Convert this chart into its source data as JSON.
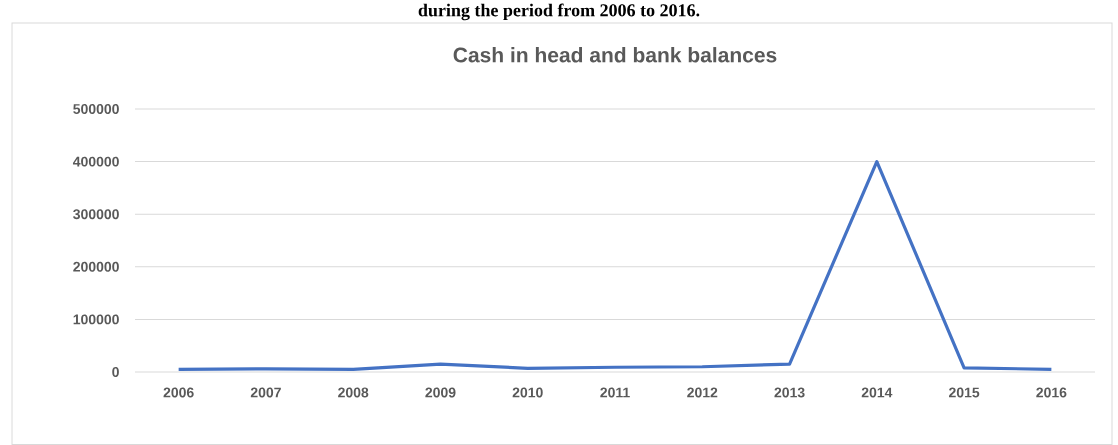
{
  "chart_data": {
    "type": "line",
    "title": "Cash in head and bank balances",
    "annotations": [
      "during the period from 2006 to 2016."
    ],
    "categories": [
      "2006",
      "2007",
      "2008",
      "2009",
      "2010",
      "2011",
      "2012",
      "2013",
      "2014",
      "2015",
      "2016"
    ],
    "series": [
      {
        "color": "#4472c4",
        "values": [
          5000,
          6000,
          5000,
          15000,
          7000,
          9000,
          10000,
          15000,
          400000,
          8000,
          5000
        ]
      }
    ],
    "ylim": [
      0,
      500000
    ],
    "yticks": [
      0,
      100000,
      200000,
      300000,
      400000,
      500000
    ],
    "grid": "y",
    "marker": "none",
    "line_style": "solid"
  }
}
